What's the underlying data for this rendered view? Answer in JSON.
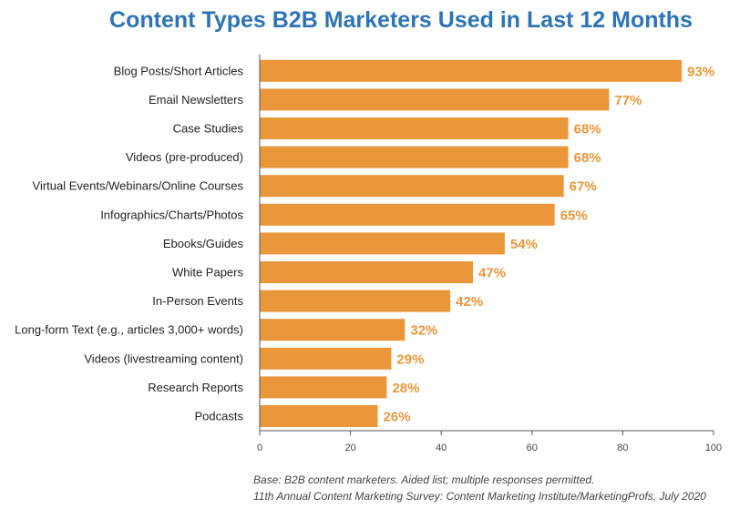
{
  "chart_data": {
    "type": "bar",
    "orientation": "horizontal",
    "title": "Content Types B2B Marketers Used in Last 12 Months",
    "categories": [
      "Blog Posts/Short Articles",
      "Email Newsletters",
      "Case Studies",
      "Videos (pre-produced)",
      "Virtual Events/Webinars/Online Courses",
      "Infographics/Charts/Photos",
      "Ebooks/Guides",
      "White Papers",
      "In-Person Events",
      "Long-form Text (e.g., articles 3,000+ words)",
      "Videos (livestreaming content)",
      "Research Reports",
      "Podcasts"
    ],
    "values": [
      93,
      77,
      68,
      68,
      67,
      65,
      54,
      47,
      42,
      32,
      29,
      28,
      26
    ],
    "value_labels": [
      "93%",
      "77%",
      "68%",
      "68%",
      "67%",
      "65%",
      "54%",
      "47%",
      "42%",
      "32%",
      "29%",
      "28%",
      "26%"
    ],
    "xlim": [
      0,
      100
    ],
    "xticks": [
      "0",
      "20",
      "40",
      "60",
      "80",
      "100"
    ],
    "xlabel": "",
    "ylabel": "",
    "grid": false,
    "bar_color": "#ea963a",
    "title_color": "#2e74b5"
  },
  "footnote": {
    "line1": "Base: B2B content marketers. Aided list; multiple responses permitted.",
    "line2": "11th Annual Content Marketing Survey: Content Marketing Institute/MarketingProfs, July 2020"
  }
}
